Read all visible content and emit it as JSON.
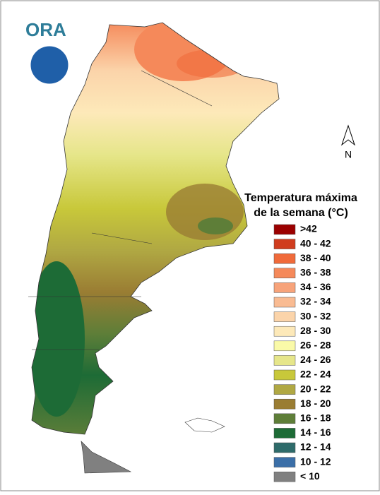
{
  "header": {
    "logo": "ORA"
  },
  "north": "N",
  "legend": {
    "title": [
      "Temperatura máxima",
      "de la semana (°C)"
    ],
    "items": [
      {
        "label": ">42",
        "color": "#9b0000"
      },
      {
        "label": "40 - 42",
        "color": "#d03c1e"
      },
      {
        "label": "38 - 40",
        "color": "#f06a3a"
      },
      {
        "label": "36 - 38",
        "color": "#f5895a"
      },
      {
        "label": "34 - 36",
        "color": "#f7a37a"
      },
      {
        "label": "32 - 34",
        "color": "#f9bb92"
      },
      {
        "label": "30 - 32",
        "color": "#fbd4aa"
      },
      {
        "label": "28 - 30",
        "color": "#fde9b9"
      },
      {
        "label": "26 - 28",
        "color": "#fafaa8"
      },
      {
        "label": "24 - 26",
        "color": "#e6e68a"
      },
      {
        "label": "22 - 24",
        "color": "#c8c83a"
      },
      {
        "label": "20 - 22",
        "color": "#b0a843"
      },
      {
        "label": "18 - 20",
        "color": "#9a7d33"
      },
      {
        "label": "16 - 18",
        "color": "#5e7e38"
      },
      {
        "label": "14 - 16",
        "color": "#1d6b36"
      },
      {
        "label": "12 - 14",
        "color": "#2e6b6a"
      },
      {
        "label": "10 - 12",
        "color": "#3b6fa8"
      },
      {
        "label": "< 10",
        "color": "#808080"
      }
    ]
  }
}
